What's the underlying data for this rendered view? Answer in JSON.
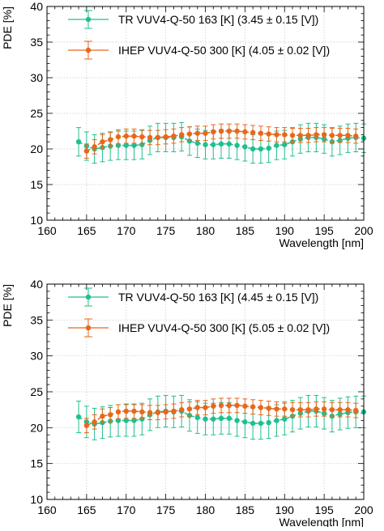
{
  "chart_data": [
    {
      "type": "line",
      "xlabel": "Wavelength [nm]",
      "ylabel": "PDE [%]",
      "xlim": [
        160,
        200
      ],
      "ylim": [
        10,
        40
      ],
      "xticks": [
        160,
        165,
        170,
        175,
        180,
        185,
        190,
        195,
        200
      ],
      "yticks": [
        10,
        15,
        20,
        25,
        30,
        35,
        40
      ],
      "grid": true,
      "legend_position": "top-left",
      "series": [
        {
          "name": "TR VUV4-Q-50 163 [K] (3.45 ± 0.15 [V])",
          "color": "#1fbf8f",
          "marker": "circle",
          "line_style": "dashed",
          "x": [
            164,
            165,
            166,
            167,
            168,
            169,
            170,
            171,
            172,
            173,
            174,
            175,
            176,
            177,
            178,
            179,
            180,
            181,
            182,
            183,
            184,
            185,
            186,
            187,
            188,
            189,
            190,
            191,
            192,
            193,
            194,
            195,
            196,
            197,
            198,
            199,
            200
          ],
          "y": [
            21.0,
            20.4,
            20.0,
            20.2,
            20.4,
            20.5,
            20.5,
            20.5,
            20.6,
            21.2,
            21.6,
            21.6,
            21.6,
            21.7,
            21.1,
            20.8,
            20.6,
            20.6,
            20.7,
            20.7,
            20.5,
            20.3,
            20.0,
            20.0,
            20.1,
            20.5,
            20.6,
            21.0,
            21.4,
            21.6,
            21.6,
            21.4,
            21.0,
            21.2,
            21.5,
            21.6,
            21.5
          ],
          "error": 2.0
        },
        {
          "name": "IHEP VUV4-Q-50 300 [K] (4.05 ± 0.02 [V])",
          "color": "#e8671a",
          "marker": "circle",
          "line_style": "dashed",
          "x": [
            165,
            166,
            167,
            168,
            169,
            170,
            171,
            172,
            173,
            174,
            175,
            176,
            177,
            178,
            179,
            180,
            181,
            182,
            183,
            184,
            185,
            186,
            187,
            188,
            189,
            190,
            191,
            192,
            193,
            194,
            195,
            196,
            197,
            198,
            199
          ],
          "y": [
            19.7,
            20.3,
            21.0,
            21.3,
            21.7,
            21.8,
            21.8,
            21.7,
            21.6,
            21.6,
            21.7,
            21.8,
            22.0,
            22.1,
            22.2,
            22.2,
            22.4,
            22.5,
            22.5,
            22.5,
            22.4,
            22.3,
            22.2,
            22.1,
            22.0,
            22.0,
            21.9,
            21.9,
            21.9,
            22.0,
            22.0,
            21.9,
            21.9,
            21.9,
            21.8
          ],
          "error": 1.0
        }
      ]
    },
    {
      "type": "line",
      "xlabel": "Wavelength [nm]",
      "ylabel": "PDE [%]",
      "xlim": [
        160,
        200
      ],
      "ylim": [
        10,
        40
      ],
      "xticks": [
        160,
        165,
        170,
        175,
        180,
        185,
        190,
        195,
        200
      ],
      "yticks": [
        10,
        15,
        20,
        25,
        30,
        35,
        40
      ],
      "grid": true,
      "legend_position": "top-left",
      "series": [
        {
          "name": "TR VUV4-Q-50 163 [K] (4.45 ± 0.15 [V])",
          "color": "#1fbf8f",
          "marker": "circle",
          "line_style": "dashed",
          "x": [
            164,
            165,
            166,
            167,
            168,
            169,
            170,
            171,
            172,
            173,
            174,
            175,
            176,
            177,
            178,
            179,
            180,
            181,
            182,
            183,
            184,
            185,
            186,
            187,
            188,
            189,
            190,
            191,
            192,
            193,
            194,
            195,
            196,
            197,
            198,
            199,
            200
          ],
          "y": [
            21.5,
            20.8,
            20.5,
            20.7,
            20.9,
            21.0,
            21.0,
            21.0,
            21.2,
            21.8,
            22.2,
            22.3,
            22.2,
            22.3,
            21.7,
            21.4,
            21.2,
            21.2,
            21.3,
            21.3,
            21.0,
            20.8,
            20.6,
            20.6,
            20.7,
            21.0,
            21.2,
            21.6,
            22.0,
            22.3,
            22.3,
            22.0,
            21.6,
            21.9,
            22.1,
            22.2,
            22.2
          ],
          "error": 2.2
        },
        {
          "name": "IHEP VUV4-Q-50 300 [K] (5.05 ± 0.02 [V])",
          "color": "#e8671a",
          "marker": "circle",
          "line_style": "dashed",
          "x": [
            165,
            166,
            167,
            168,
            169,
            170,
            171,
            172,
            173,
            174,
            175,
            176,
            177,
            178,
            179,
            180,
            181,
            182,
            183,
            184,
            185,
            186,
            187,
            188,
            189,
            190,
            191,
            192,
            193,
            194,
            195,
            196,
            197,
            198,
            199
          ],
          "y": [
            20.3,
            20.8,
            21.6,
            21.8,
            22.2,
            22.3,
            22.3,
            22.2,
            22.1,
            22.1,
            22.2,
            22.3,
            22.5,
            22.6,
            22.8,
            22.8,
            23.0,
            23.1,
            23.1,
            23.1,
            23.0,
            22.9,
            22.8,
            22.7,
            22.6,
            22.6,
            22.5,
            22.5,
            22.5,
            22.6,
            22.6,
            22.5,
            22.5,
            22.5,
            22.4
          ],
          "error": 1.0
        }
      ]
    }
  ]
}
